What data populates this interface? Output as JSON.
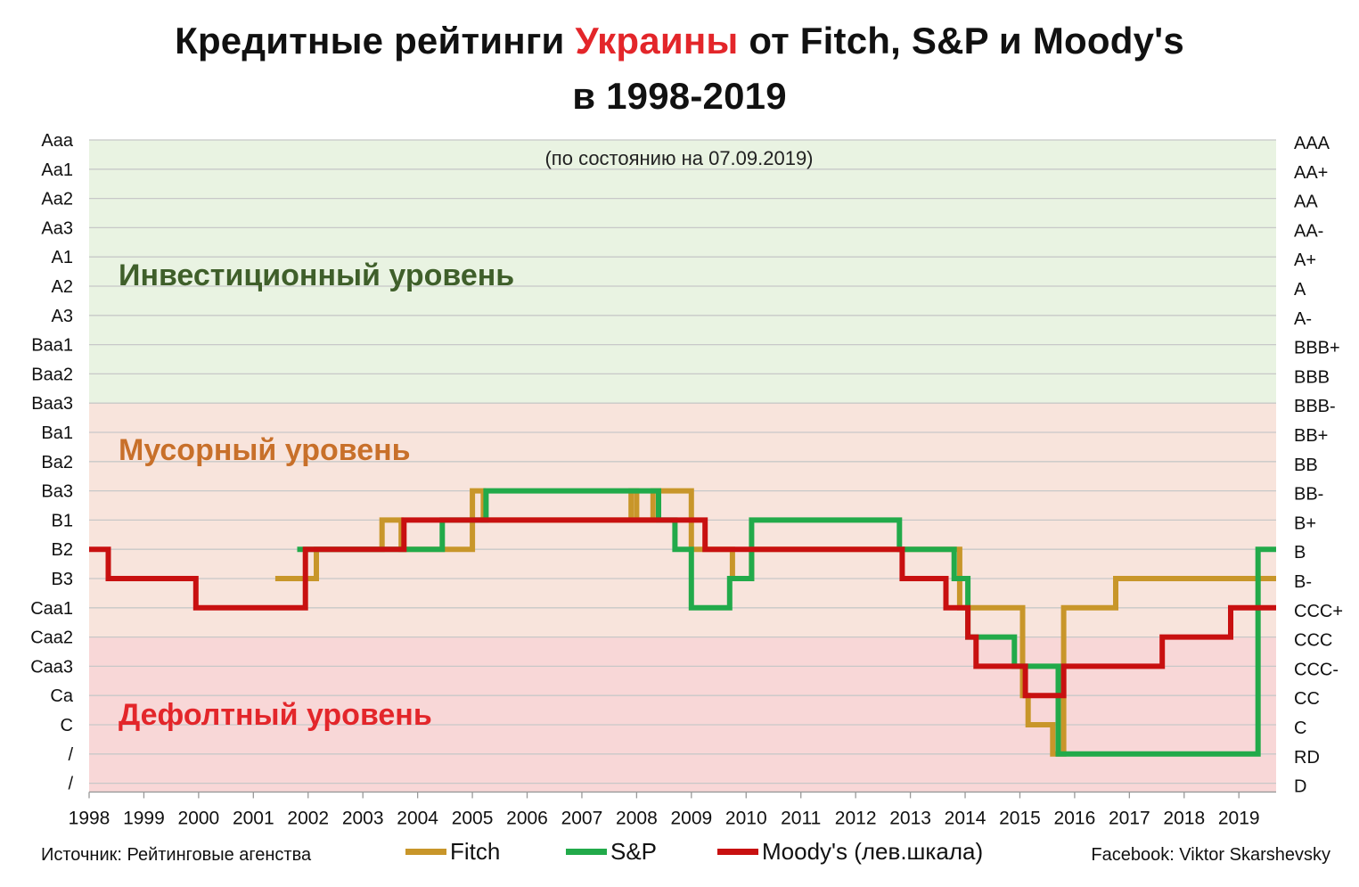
{
  "title": {
    "part1": "Кредитные рейтинги ",
    "highlight": "Украины",
    "part2": " от Fitch, S&P и Moody's",
    "line2": "в 1998-2019"
  },
  "subtitle": "(по состоянию на 07.09.2019)",
  "zones": {
    "investment": "Инвестиционный уровень",
    "junk": "Мусорный уровень",
    "default": "Дефолтный уровень"
  },
  "colors": {
    "fitch": "#c8962a",
    "sp": "#22aa4a",
    "moodys": "#c81010",
    "investment_bg": "#e9f3e2",
    "junk_bg": "#f8e4dc",
    "default_bg": "#f8d7d7",
    "investment_text": "#3f5f2a",
    "junk_text": "#c8702a",
    "default_text": "#e3262a"
  },
  "legend": {
    "fitch": "Fitch",
    "sp": "S&P",
    "moodys": "Moody's (лев.шкала)"
  },
  "source": "Источник: Рейтинговые агенства",
  "credit": "Facebook: Viktor Skarshevsky",
  "chart_data": {
    "type": "line",
    "step": true,
    "title": "Кредитные рейтинги Украины от Fitch, S&P и Moody's в 1998-2019",
    "xlim": [
      1998,
      2019.68
    ],
    "x_ticks": [
      "1998",
      "1999",
      "2000",
      "2001",
      "2002",
      "2003",
      "2004",
      "2005",
      "2006",
      "2007",
      "2008",
      "2009",
      "2010",
      "2011",
      "2012",
      "2013",
      "2014",
      "2015",
      "2016",
      "2017",
      "2018",
      "2019"
    ],
    "y_left_labels": [
      "Aaa",
      "Aa1",
      "Aa2",
      "Aa3",
      "A1",
      "A2",
      "A3",
      "Baa1",
      "Baa2",
      "Baa3",
      "Ba1",
      "Ba2",
      "Ba3",
      "B1",
      "B2",
      "B3",
      "Caa1",
      "Caa2",
      "Caa3",
      "Ca",
      "C",
      "/",
      "/"
    ],
    "y_right_labels": [
      "AAA",
      "AA+",
      "AA",
      "AA-",
      "A+",
      "A",
      "A-",
      "BBB+",
      "BBB",
      "BBB-",
      "BB+",
      "BB",
      "BB-",
      "B+",
      "B",
      "B-",
      "CCC+",
      "CCC",
      "CCC-",
      "CC",
      "C",
      "RD",
      "D"
    ],
    "y_note": "value = rank index from top (0 = Aaa/AAA, 22 = /, D)",
    "zones": [
      {
        "name": "investment",
        "from_rank": 0,
        "to_rank": 9
      },
      {
        "name": "junk",
        "from_rank": 9,
        "to_rank": 17
      },
      {
        "name": "default",
        "from_rank": 17,
        "to_rank": 22.3
      }
    ],
    "series": [
      {
        "name": "Fitch",
        "x": [
          2001.4,
          2002.15,
          2003.35,
          2003.7,
          2005.0,
          2005.2,
          2007.9,
          2008.0,
          2008.3,
          2009.0,
          2009.1,
          2009.75,
          2010.1,
          2011.0,
          2013.0,
          2013.9,
          2015.05,
          2015.15,
          2015.6,
          2015.8,
          2016.75,
          2019.5,
          2019.68
        ],
        "values": [
          15,
          14,
          13,
          14,
          12,
          13,
          12,
          13,
          12,
          14,
          14,
          15,
          14,
          14,
          14,
          16,
          19,
          20,
          21,
          16,
          15,
          15,
          15
        ]
      },
      {
        "name": "S&P",
        "x": [
          2001.8,
          2003.8,
          2004.45,
          2005.25,
          2008.4,
          2008.7,
          2009.0,
          2009.7,
          2010.1,
          2010.45,
          2012.8,
          2013.8,
          2014.05,
          2014.9,
          2015.7,
          2019.35,
          2019.68
        ],
        "values": [
          14,
          14,
          13,
          12,
          13,
          14,
          16,
          15,
          13,
          13,
          14,
          15,
          17,
          18,
          21,
          14,
          14
        ]
      },
      {
        "name": "Moody's",
        "x": [
          1998,
          1998.35,
          1999.95,
          2001.95,
          2003.75,
          2006.0,
          2008.0,
          2009.25,
          2012.85,
          2013.65,
          2014.05,
          2014.2,
          2015.1,
          2015.25,
          2015.8,
          2016.0,
          2017.6,
          2018.85,
          2019.5,
          2019.68
        ],
        "values": [
          14,
          15,
          16,
          14,
          13,
          13,
          13,
          14,
          15,
          16,
          17,
          18,
          19,
          19,
          18,
          18,
          17,
          16,
          16,
          16
        ]
      }
    ]
  }
}
